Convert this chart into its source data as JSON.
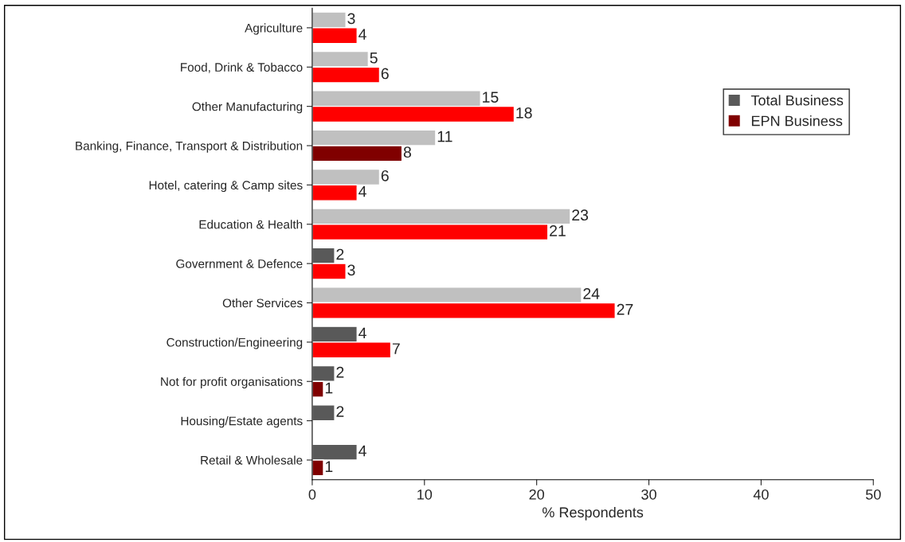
{
  "chart_data": {
    "type": "bar",
    "orientation": "horizontal",
    "xlabel": "% Respondents",
    "categories": [
      "Agriculture",
      "Food, Drink & Tobacco",
      "Other Manufacturing",
      "Banking, Finance, Transport & Distribution",
      "Hotel, catering & Camp sites",
      "Education & Health",
      "Government & Defence",
      "Other Services",
      "Construction/Engineering",
      "Not for profit organisations",
      "Housing/Estate agents",
      "Retail & Wholesale"
    ],
    "series": [
      {
        "name": "Total Business",
        "color": "#595959",
        "values": [
          3,
          5,
          15,
          11,
          6,
          23,
          2,
          24,
          4,
          2,
          2,
          4
        ],
        "colors": [
          "#c0c0c0",
          "#c0c0c0",
          "#c0c0c0",
          "#c0c0c0",
          "#c0c0c0",
          "#c0c0c0",
          "#595959",
          "#c0c0c0",
          "#595959",
          "#595959",
          "#595959",
          "#595959"
        ]
      },
      {
        "name": "EPN Business",
        "color": "#800000",
        "values": [
          4,
          6,
          18,
          8,
          4,
          21,
          3,
          27,
          7,
          1,
          null,
          1
        ],
        "colors": [
          "#ff0000",
          "#ff0000",
          "#ff0000",
          "#800000",
          "#ff0000",
          "#ff0000",
          "#ff0000",
          "#ff0000",
          "#ff0000",
          "#800000",
          "#800000",
          "#800000"
        ]
      }
    ],
    "xlim": [
      0,
      50
    ],
    "xticks": [
      0,
      10,
      20,
      30,
      40,
      50
    ],
    "data_labels": true,
    "legend": "right",
    "grid": false
  }
}
